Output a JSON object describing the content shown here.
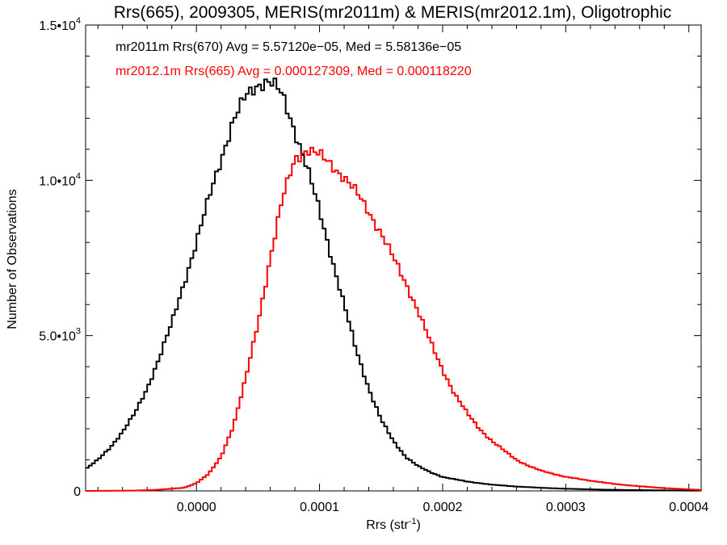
{
  "chart_data": {
    "type": "histogram-step",
    "title": "Rrs(665), 2009305, MERIS(mr2011m) & MERIS(mr2012.1m), Oligotrophic",
    "xlabel": "Rrs (str",
    "xlabel_sup": "-1",
    "xlabel_suffix": ")",
    "ylabel": "Number of Observations",
    "xlim": [
      -9e-05,
      0.00041
    ],
    "ylim": [
      0,
      15000
    ],
    "xticks": [
      0.0,
      0.0001,
      0.0002,
      0.0003,
      0.0004
    ],
    "xtick_labels": [
      "0.0000",
      "0.0001",
      "0.0002",
      "0.0003",
      "0.0004"
    ],
    "yticks": [
      0,
      5000,
      10000,
      15000
    ],
    "ytick_labels": [
      {
        "base": "0",
        "exp": ""
      },
      {
        "base": "5.0•1",
        "exp": "",
        "mant": "5.0•10",
        "sup": "3"
      },
      {
        "mant": "1.0•10",
        "sup": "4"
      },
      {
        "mant": "1.5•10",
        "sup": "4"
      }
    ],
    "series": [
      {
        "name": "mr2011m Rrs(670)",
        "color": "#000000",
        "legend_text": "mr2011m Rrs(670) Avg = 5.57120e−05, Med = 5.58136e−05",
        "points": [
          [
            -9e-05,
            700
          ],
          [
            -8e-05,
            1000
          ],
          [
            -7e-05,
            1400
          ],
          [
            -6e-05,
            1900
          ],
          [
            -5e-05,
            2500
          ],
          [
            -4e-05,
            3300
          ],
          [
            -3e-05,
            4300
          ],
          [
            -2e-05,
            5400
          ],
          [
            -1e-05,
            6700
          ],
          [
            0.0,
            8000
          ],
          [
            1e-05,
            9400
          ],
          [
            2e-05,
            10700
          ],
          [
            3e-05,
            11900
          ],
          [
            4e-05,
            12700
          ],
          [
            5e-05,
            13100
          ],
          [
            5.8e-05,
            13200
          ],
          [
            6.5e-05,
            13000
          ],
          [
            7e-05,
            12700
          ],
          [
            8e-05,
            11600
          ],
          [
            9e-05,
            10400
          ],
          [
            0.0001,
            9000
          ],
          [
            0.00011,
            7500
          ],
          [
            0.00012,
            6000
          ],
          [
            0.00013,
            4500
          ],
          [
            0.00014,
            3300
          ],
          [
            0.00015,
            2300
          ],
          [
            0.00016,
            1600
          ],
          [
            0.00017,
            1100
          ],
          [
            0.00018,
            800
          ],
          [
            0.00019,
            600
          ],
          [
            0.0002,
            450
          ],
          [
            0.00022,
            300
          ],
          [
            0.00024,
            200
          ],
          [
            0.00026,
            140
          ],
          [
            0.00028,
            100
          ],
          [
            0.0003,
            70
          ],
          [
            0.00033,
            40
          ],
          [
            0.00036,
            25
          ],
          [
            0.0004,
            10
          ],
          [
            0.00041,
            8
          ]
        ]
      },
      {
        "name": "mr2012.1m Rrs(665)",
        "color": "#ff0000",
        "legend_text": "mr2012.1m Rrs(665) Avg = 0.000127309, Med = 0.000118220",
        "points": [
          [
            -9e-05,
            0
          ],
          [
            -5e-05,
            10
          ],
          [
            -3e-05,
            40
          ],
          [
            -1e-05,
            100
          ],
          [
            0.0,
            250
          ],
          [
            1e-05,
            550
          ],
          [
            2e-05,
            1100
          ],
          [
            3e-05,
            2100
          ],
          [
            4e-05,
            3600
          ],
          [
            5e-05,
            5400
          ],
          [
            6e-05,
            7500
          ],
          [
            7e-05,
            9400
          ],
          [
            8e-05,
            10700
          ],
          [
            9e-05,
            11000
          ],
          [
            0.0001,
            10800
          ],
          [
            0.00011,
            10500
          ],
          [
            0.00012,
            10100
          ],
          [
            0.00013,
            9600
          ],
          [
            0.00014,
            9000
          ],
          [
            0.00015,
            8300
          ],
          [
            0.00016,
            7500
          ],
          [
            0.00017,
            6700
          ],
          [
            0.00018,
            5800
          ],
          [
            0.00019,
            4800
          ],
          [
            0.0002,
            3900
          ],
          [
            0.00021,
            3100
          ],
          [
            0.00022,
            2500
          ],
          [
            0.00023,
            2000
          ],
          [
            0.00024,
            1600
          ],
          [
            0.00025,
            1300
          ],
          [
            0.00026,
            1000
          ],
          [
            0.00027,
            800
          ],
          [
            0.00028,
            650
          ],
          [
            0.0003,
            450
          ],
          [
            0.00032,
            330
          ],
          [
            0.00034,
            220
          ],
          [
            0.00036,
            150
          ],
          [
            0.00038,
            90
          ],
          [
            0.0004,
            50
          ],
          [
            0.00041,
            30
          ]
        ]
      }
    ],
    "grid": false
  }
}
